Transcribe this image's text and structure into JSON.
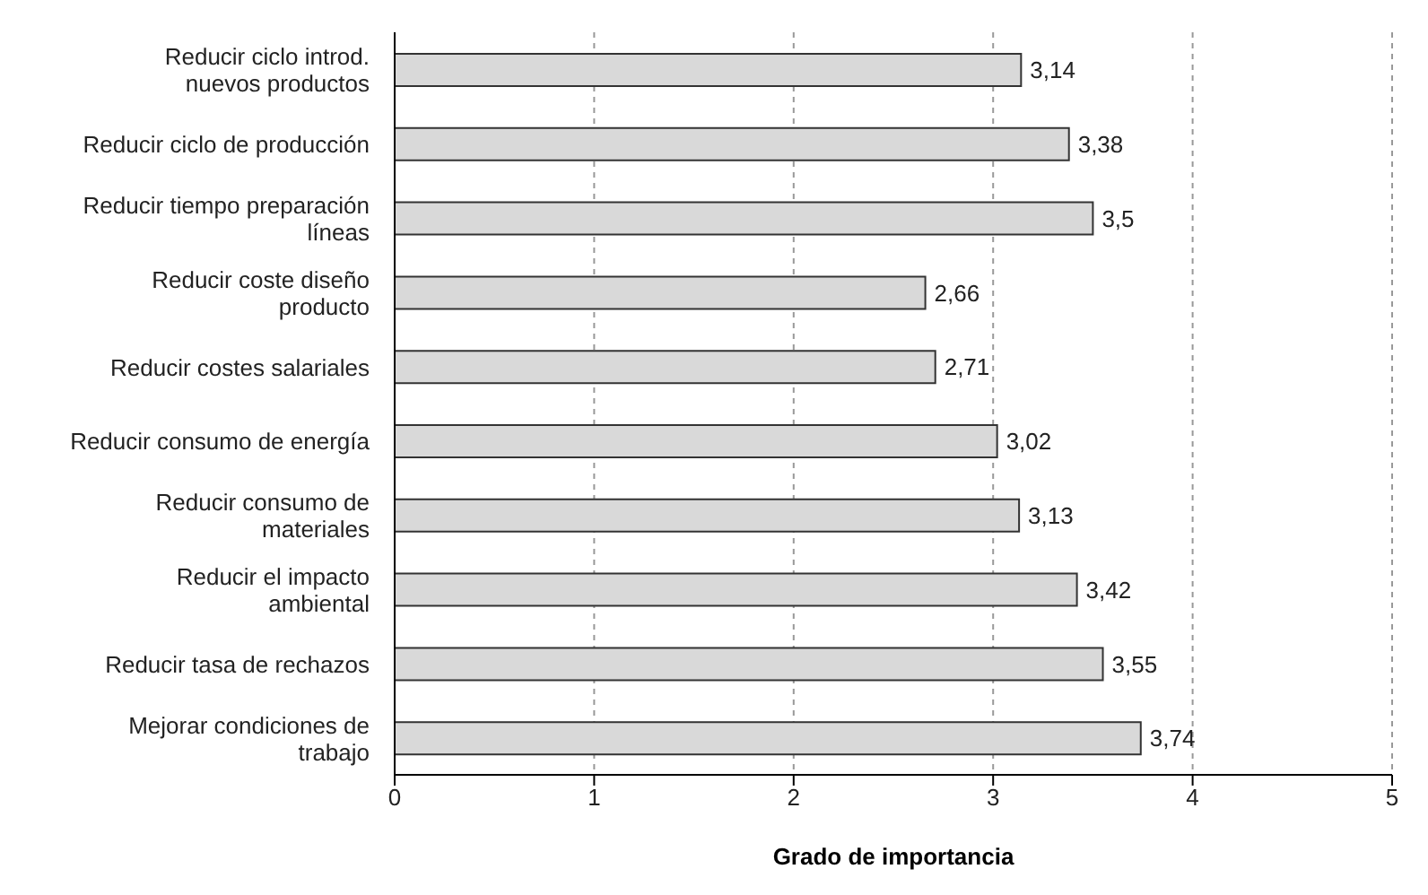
{
  "chart_data": {
    "type": "bar",
    "orientation": "horizontal",
    "xlabel": "Grado de importancia",
    "categories": [
      "Reducir ciclo introd. nuevos productos",
      "Reducir ciclo de producción",
      "Reducir tiempo preparación líneas",
      "Reducir coste diseño producto",
      "Reducir costes salariales",
      "Reducir consumo de energía",
      "Reducir consumo de materiales",
      "Reducir el impacto ambiental",
      "Reducir tasa de rechazos",
      "Mejorar condiciones de trabajo"
    ],
    "values": [
      3.14,
      3.38,
      3.5,
      2.66,
      2.71,
      3.02,
      3.13,
      3.42,
      3.55,
      3.74
    ],
    "value_labels": [
      "3,14",
      "3,38",
      "3,5",
      "2,66",
      "2,71",
      "3,02",
      "3,13",
      "3,42",
      "3,55",
      "3,74"
    ],
    "color": "#d9d9d9",
    "xlim": [
      0,
      5
    ],
    "xticks": [
      0,
      1,
      2,
      3,
      4,
      5
    ],
    "grid": "x"
  }
}
